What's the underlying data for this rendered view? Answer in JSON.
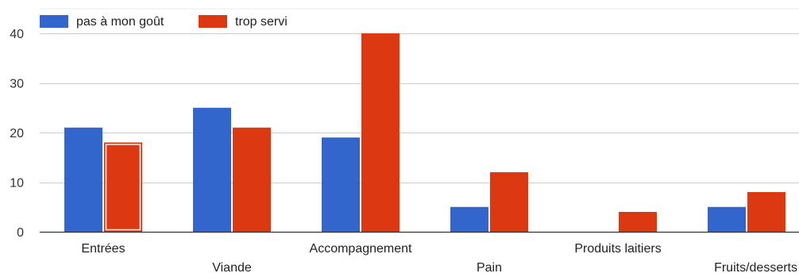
{
  "chart_data": {
    "type": "bar",
    "title": "",
    "xlabel": "",
    "ylabel": "",
    "categories": [
      "Entrées",
      "Viande",
      "Accompagnement",
      "Pain",
      "Produits laitiers",
      "Fruits/desserts"
    ],
    "series": [
      {
        "name": "pas à mon goût",
        "color": "#3366cc",
        "values": [
          21,
          25,
          19,
          5,
          0,
          5
        ]
      },
      {
        "name": "trop servi",
        "color": "#dc3912",
        "values": [
          18,
          21,
          40,
          12,
          4,
          8
        ]
      }
    ],
    "ylim": [
      0,
      40
    ],
    "yticks": [
      "0",
      "10",
      "20",
      "30",
      "40"
    ],
    "grid": true,
    "legend_position": "top-left",
    "highlighted_bar": {
      "series": 1,
      "category": 0
    }
  }
}
